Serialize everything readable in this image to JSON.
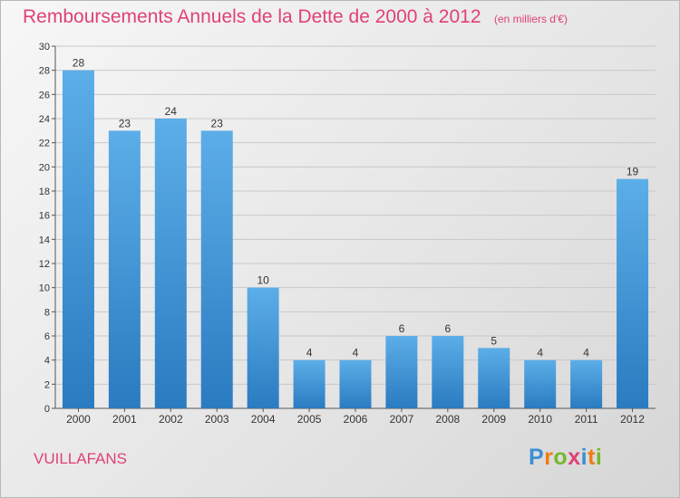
{
  "header": {
    "title": "Remboursements Annuels de la Dette de 2000 à 2012",
    "unit": "(en milliers d'€)"
  },
  "footer": {
    "commune": "VUILLAFANS",
    "logo_text": "Proxiti",
    "logo_colors": [
      "#3a8fd6",
      "#f07c14",
      "#77b82a",
      "#e0407a",
      "#3a8fd6",
      "#f07c14",
      "#77b82a"
    ]
  },
  "colors": {
    "bar_top": "#5caee8",
    "bar_bottom": "#2a7bc0",
    "accent": "#e0407a",
    "axis": "#555555",
    "grid": "#c8c8c8"
  },
  "chart_data": {
    "type": "bar",
    "title": "Remboursements Annuels de la Dette de 2000 à 2012",
    "categories": [
      "2000",
      "2001",
      "2002",
      "2003",
      "2004",
      "2005",
      "2006",
      "2007",
      "2008",
      "2009",
      "2010",
      "2011",
      "2012"
    ],
    "values": [
      28,
      23,
      24,
      23,
      10,
      4,
      4,
      6,
      6,
      5,
      4,
      4,
      19
    ],
    "ylim": [
      0,
      30
    ],
    "yticks": [
      0,
      2,
      4,
      6,
      8,
      10,
      12,
      14,
      16,
      18,
      20,
      22,
      24,
      26,
      28,
      30
    ],
    "grid": true,
    "data_labels": true
  }
}
